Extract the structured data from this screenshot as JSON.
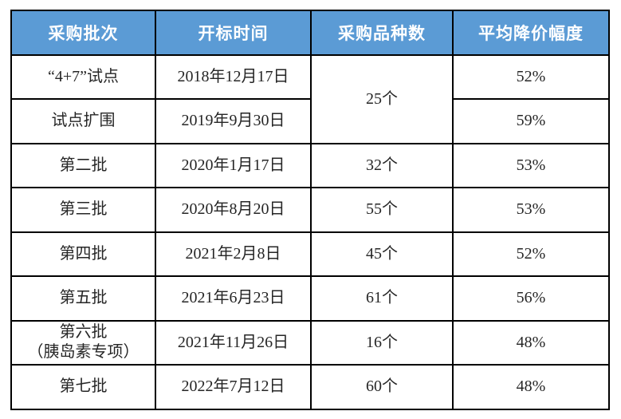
{
  "colors": {
    "header_bg": "#5B9BD5",
    "header_text": "#FFFFFF",
    "grid_border": "#000000",
    "cell_text": "#262626"
  },
  "table": {
    "headers": [
      "采购批次",
      "开标时间",
      "采购品种数",
      "平均降价幅度"
    ],
    "rows": [
      {
        "batch": "“4+7”试点",
        "date": "2018年12月17日",
        "varieties": "25个",
        "varieties_rowspan": 2,
        "reduction": "52%"
      },
      {
        "batch": "试点扩围",
        "date": "2019年9月30日",
        "reduction": "59%"
      },
      {
        "batch": "第二批",
        "date": "2020年1月17日",
        "varieties": "32个",
        "reduction": "53%"
      },
      {
        "batch": "第三批",
        "date": "2020年8月20日",
        "varieties": "55个",
        "reduction": "53%"
      },
      {
        "batch": "第四批",
        "date": "2021年2月8日",
        "varieties": "45个",
        "reduction": "52%"
      },
      {
        "batch": "第五批",
        "date": "2021年6月23日",
        "varieties": "61个",
        "reduction": "56%"
      },
      {
        "batch": "第六批\n（胰岛素专项）",
        "date": "2021年11月26日",
        "varieties": "16个",
        "reduction": "48%"
      },
      {
        "batch": "第七批",
        "date": "2022年7月12日",
        "varieties": "60个",
        "reduction": "48%"
      }
    ]
  }
}
